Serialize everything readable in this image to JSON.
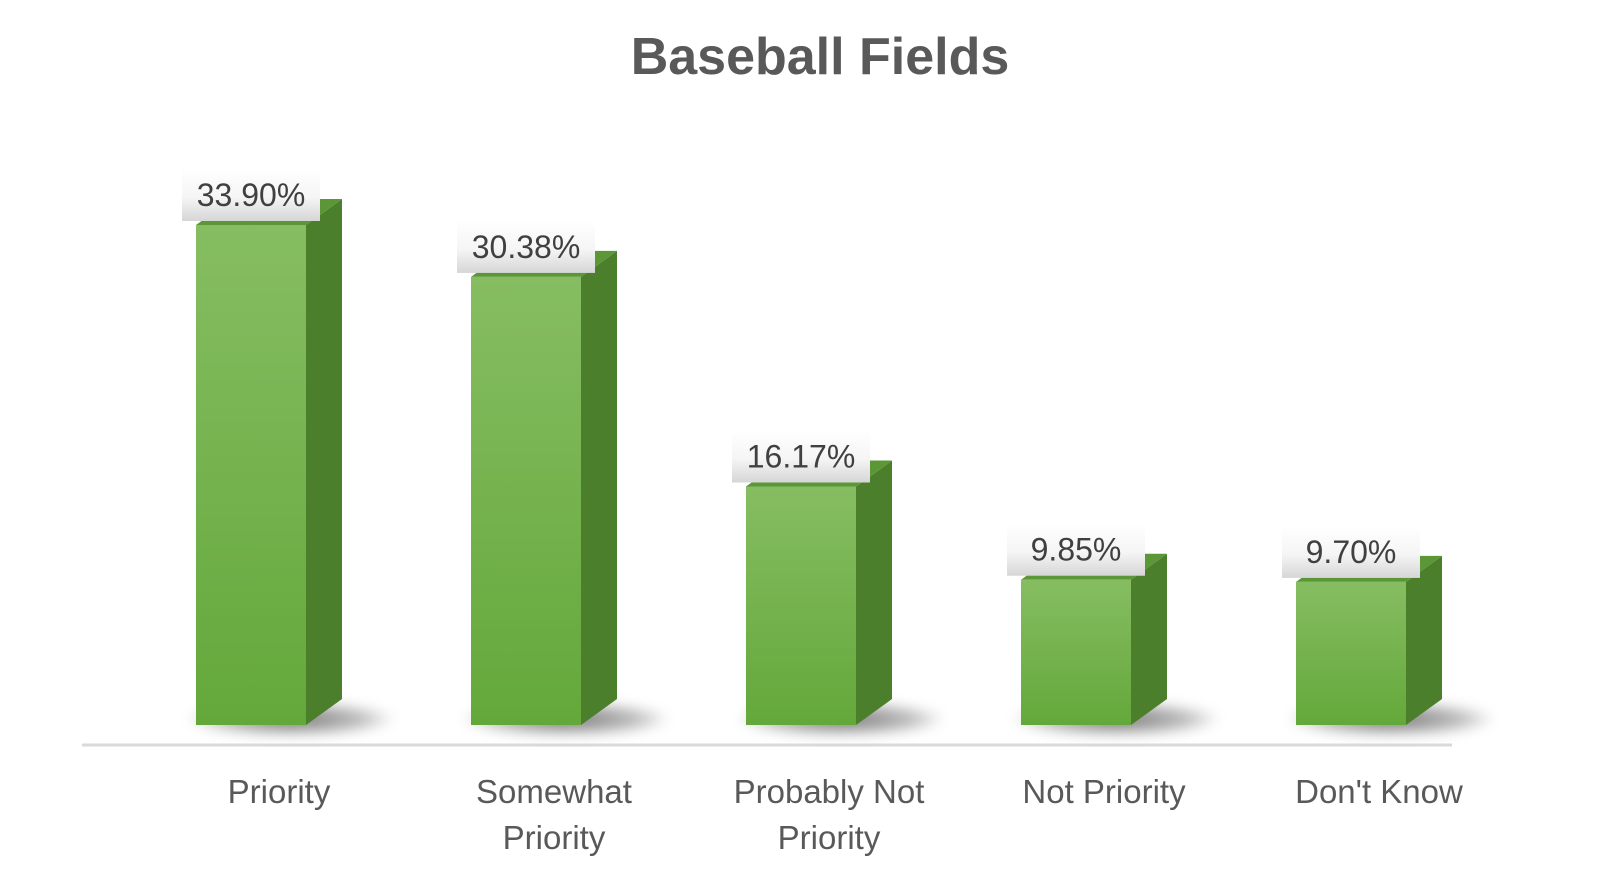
{
  "chart_data": {
    "type": "bar",
    "title": "Baseball Fields",
    "categories": [
      [
        "Priority"
      ],
      [
        "Somewhat",
        "Priority"
      ],
      [
        "Probably Not",
        "Priority"
      ],
      [
        "Not Priority"
      ],
      [
        "Don't Know"
      ]
    ],
    "values": [
      33.9,
      30.38,
      16.17,
      9.85,
      9.7
    ],
    "data_labels": [
      "33.90%",
      "30.38%",
      "16.17%",
      "9.85%",
      "9.70%"
    ],
    "ylim": [
      0,
      40
    ],
    "grid": false,
    "legend": "none",
    "style": "3d-column"
  },
  "colors": {
    "bar_front_top": "#86bd62",
    "bar_front_bottom": "#64a83a",
    "bar_side": "#4b7f2c",
    "bar_top": "#5c9737",
    "axis": "#d9d9d9",
    "text": "#595959"
  }
}
